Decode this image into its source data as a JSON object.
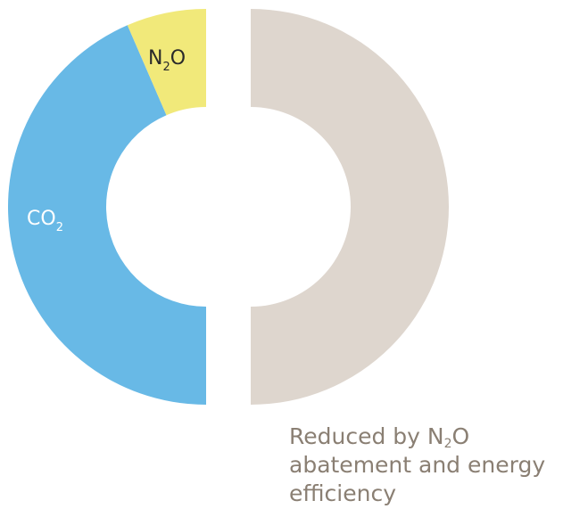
{
  "chart_data": {
    "type": "pie",
    "style": "split donut",
    "left_half": {
      "segments": [
        {
          "id": "co2",
          "label": "CO",
          "subscript": "2",
          "fraction_of_half": 0.87,
          "color": "#68b9e6",
          "label_color": "#ffffff"
        },
        {
          "id": "n2o",
          "label_parts": [
            "N",
            "2",
            "O"
          ],
          "fraction_of_half": 0.13,
          "color": "#f1e97a",
          "label_color": "#2a2a2a"
        }
      ]
    },
    "right_half": {
      "segments": [
        {
          "id": "reduced",
          "fraction_of_half": 1.0,
          "color": "#ded6ce"
        }
      ]
    },
    "annotation": {
      "line1_parts": [
        "Reduced by N",
        "2",
        "O"
      ],
      "line2": "abatement and energy",
      "line3": "efficiency",
      "color": "#8a7f73"
    }
  }
}
